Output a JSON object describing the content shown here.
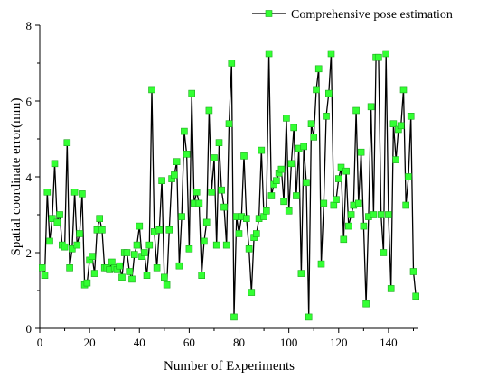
{
  "chart_data": {
    "type": "line",
    "title": "",
    "xlabel": "Number of Experiments",
    "ylabel": "Spatial coordinate error(mm)",
    "xlim": [
      0,
      152
    ],
    "ylim": [
      0,
      8
    ],
    "xticks": [
      0,
      20,
      40,
      60,
      80,
      100,
      120,
      140
    ],
    "yticks": [
      0,
      2,
      4,
      6,
      8
    ],
    "grid": false,
    "legend_position": "top-right",
    "colors": {
      "line": "#000000",
      "marker_fill": "#33ff33",
      "marker_stroke": "#1faa1f"
    },
    "series": [
      {
        "name": "Comprehensive pose estimation",
        "values": [
          1.6,
          1.4,
          3.6,
          2.3,
          2.9,
          4.35,
          2.8,
          3.0,
          2.2,
          2.15,
          4.9,
          1.6,
          2.1,
          3.6,
          2.2,
          2.5,
          3.55,
          1.15,
          1.2,
          1.8,
          1.9,
          1.45,
          2.6,
          2.9,
          2.6,
          1.6,
          1.6,
          1.55,
          1.75,
          1.6,
          1.55,
          1.65,
          1.35,
          2.0,
          2.0,
          1.5,
          1.3,
          1.95,
          2.2,
          2.7,
          1.9,
          2.0,
          1.4,
          2.2,
          6.3,
          2.55,
          1.6,
          2.6,
          3.9,
          1.35,
          1.15,
          2.6,
          3.95,
          4.05,
          4.4,
          1.65,
          2.95,
          5.2,
          4.6,
          2.1,
          6.2,
          3.3,
          3.6,
          3.3,
          1.4,
          2.3,
          2.8,
          5.75,
          3.6,
          4.5,
          2.2,
          4.9,
          3.65,
          3.2,
          2.2,
          5.4,
          7.0,
          0.3,
          2.95,
          2.5,
          2.95,
          4.55,
          2.9,
          2.1,
          0.95,
          2.4,
          2.5,
          2.9,
          4.7,
          2.95,
          3.1,
          7.25,
          3.5,
          3.8,
          3.9,
          4.1,
          4.2,
          3.35,
          5.55,
          3.1,
          4.35,
          5.3,
          3.5,
          4.75,
          1.45,
          4.8,
          3.85,
          0.3,
          5.4,
          5.05,
          6.3,
          6.85,
          1.7,
          3.3,
          5.6,
          6.2,
          7.25,
          3.25,
          3.4,
          3.95,
          4.25,
          2.35,
          4.15,
          2.7,
          3.0,
          3.25,
          5.75,
          3.3,
          4.65,
          2.7,
          0.65,
          2.95,
          5.85,
          3.0,
          7.15,
          7.15,
          3.0,
          2.0,
          7.25,
          3.0,
          1.05,
          5.4,
          4.45,
          5.25,
          5.35,
          6.3,
          3.25,
          4.0,
          5.6,
          1.5,
          0.85
        ]
      }
    ]
  }
}
